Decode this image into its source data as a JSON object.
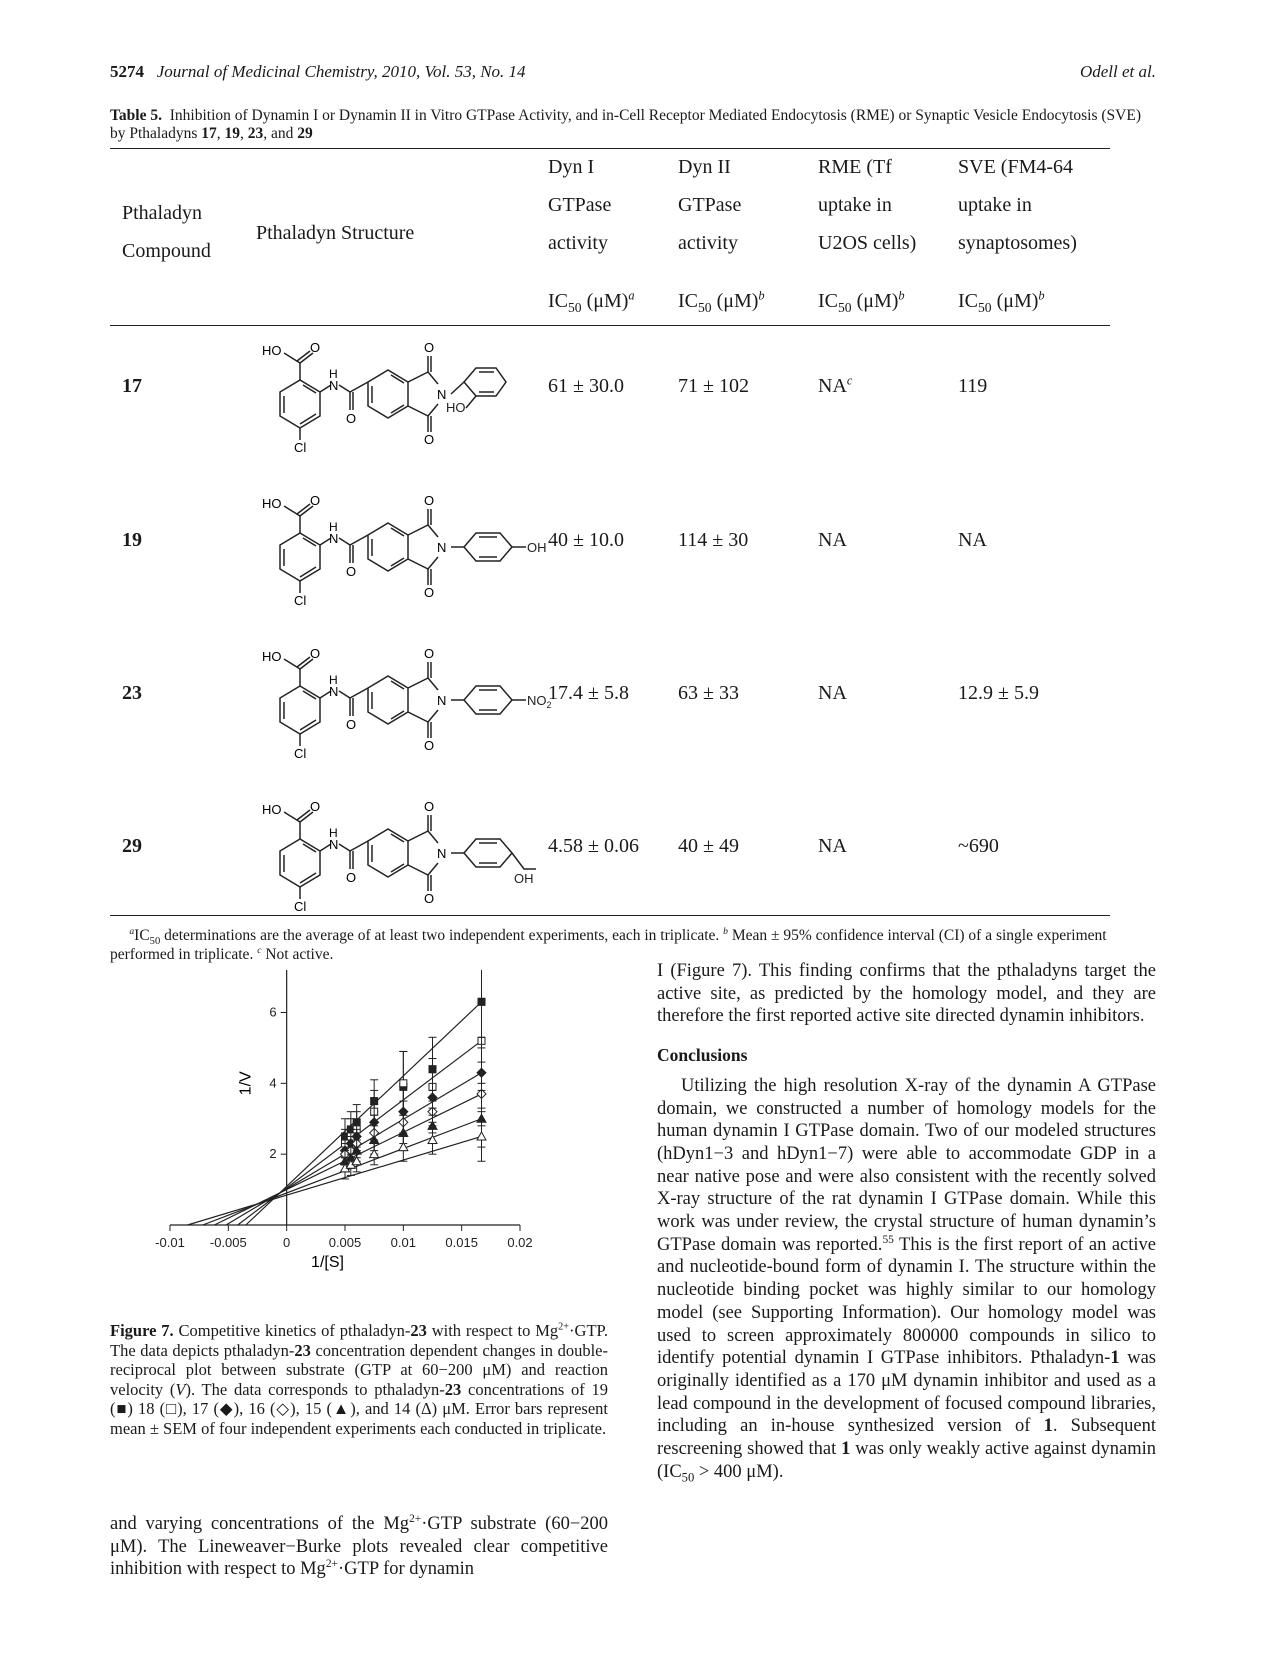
{
  "header": {
    "page_number": "5274",
    "journal": "Journal of Medicinal Chemistry, 2010, Vol. 53, No. 14",
    "authors": "Odell et al."
  },
  "table": {
    "label": "Table 5.",
    "caption_a": "Inhibition of Dynamin I or Dynamin II in Vitro GTPase Activity, and in-Cell Receptor Mediated Endocytosis (RME) or Synaptic Vesicle Endocytosis (SVE) by Pthaladyns ",
    "caption_nums": [
      "17",
      "19",
      "23",
      "29"
    ],
    "headers": {
      "compound": [
        "Pthaladyn",
        "Compound"
      ],
      "structure": "Pthaladyn Structure",
      "dyn1": [
        "Dyn I",
        "GTPase",
        "activity"
      ],
      "dyn2": [
        "Dyn II",
        "GTPase",
        "activity"
      ],
      "rme": [
        "RME (Tf",
        "uptake in",
        "U2OS cells)"
      ],
      "sve": [
        "SVE (FM4-64",
        "uptake in",
        "synaptosomes)"
      ],
      "ic50_prefix": "IC",
      "ic50_sub": "50",
      "ic50_suffix": " (μM)",
      "sup_a": "a",
      "sup_b": "b"
    },
    "rows": [
      {
        "compound": "17",
        "dyn1": "61 ± 30.0",
        "dyn2": "71 ± 102",
        "rme": "NA",
        "rme_sup": "c",
        "sve": "119"
      },
      {
        "compound": "19",
        "dyn1": "40 ± 10.0",
        "dyn2": "114 ± 30",
        "rme": "NA",
        "rme_sup": "",
        "sve": "NA"
      },
      {
        "compound": "23",
        "dyn1": "17.4 ± 5.8",
        "dyn2": "63 ± 33",
        "rme": "NA",
        "rme_sup": "",
        "sve": "12.9 ± 5.9"
      },
      {
        "compound": "29",
        "dyn1": "4.58 ± 0.06",
        "dyn2": "40 ± 49",
        "rme": "NA",
        "rme_sup": "",
        "sve": "~690"
      }
    ],
    "structure_labels": {
      "ho": "HO",
      "o": "O",
      "h": "H",
      "n": "N",
      "cl": "Cl",
      "oh": "OH",
      "no2": "NO",
      "no2_sub": "2"
    },
    "footnote_sup_a": "a",
    "footnote_a1": "IC",
    "footnote_a_sub": "50",
    "footnote_a2": " determinations are the average of at least two independent experiments, each in triplicate. ",
    "footnote_sup_b": "b",
    "footnote_b": " Mean ± 95% confidence interval (CI) of a single experiment performed in triplicate. ",
    "footnote_sup_c": "c",
    "footnote_c": " Not active."
  },
  "chart_data": {
    "type": "line",
    "title": "",
    "xlabel": "1/[S]",
    "ylabel": "1/V",
    "xlim": [
      -0.01,
      0.02
    ],
    "ylim": [
      0,
      7.2
    ],
    "x_ticks": [
      "-0.01",
      "-0.005",
      "0",
      "0.005",
      "0.01",
      "0.015",
      "0.02"
    ],
    "y_ticks": [
      "2",
      "4",
      "6"
    ],
    "x": [
      0.005,
      0.0055,
      0.006,
      0.0075,
      0.01,
      0.0125,
      0.0167
    ],
    "intercept_y": 0.9,
    "series": [
      {
        "marker": "filled-square",
        "values": [
          2.5,
          2.7,
          2.9,
          3.5,
          3.9,
          4.4,
          6.3
        ],
        "err": [
          0.5,
          0.5,
          0.5,
          0.6,
          1.0,
          0.9,
          1.3
        ],
        "x_intercept": -0.0035
      },
      {
        "marker": "open-square",
        "values": [
          2.3,
          2.5,
          2.7,
          3.2,
          4.0,
          3.9,
          5.2
        ],
        "err": [
          0.4,
          0.5,
          0.5,
          0.6,
          0.9,
          0.8,
          1.2
        ],
        "x_intercept": -0.0042
      },
      {
        "marker": "filled-diamond",
        "values": [
          2.1,
          2.3,
          2.5,
          2.9,
          3.2,
          3.6,
          4.3
        ],
        "err": [
          0.4,
          0.4,
          0.4,
          0.5,
          0.7,
          0.7,
          1.0
        ],
        "x_intercept": -0.0052
      },
      {
        "marker": "open-diamond",
        "values": [
          2.0,
          2.1,
          2.3,
          2.6,
          2.9,
          3.2,
          3.7
        ],
        "err": [
          0.3,
          0.4,
          0.4,
          0.5,
          0.6,
          0.6,
          0.9
        ],
        "x_intercept": -0.0062
      },
      {
        "marker": "filled-triangle",
        "values": [
          1.8,
          1.9,
          2.1,
          2.4,
          2.6,
          2.8,
          3.0
        ],
        "err": [
          0.3,
          0.3,
          0.3,
          0.4,
          0.5,
          0.5,
          0.8
        ],
        "x_intercept": -0.0072
      },
      {
        "marker": "open-triangle",
        "values": [
          1.6,
          1.7,
          1.8,
          2.0,
          2.2,
          2.4,
          2.5
        ],
        "err": [
          0.3,
          0.3,
          0.3,
          0.3,
          0.4,
          0.4,
          0.7
        ],
        "x_intercept": -0.0085
      }
    ]
  },
  "figure": {
    "label": "Figure 7.",
    "caption_1": " Competitive kinetics of pthaladyn-",
    "caption_23a": "23",
    "caption_2": " with respect to Mg",
    "caption_sup": "2+",
    "caption_3": "·GTP. The data depicts pthaladyn-",
    "caption_23b": "23",
    "caption_4": " concentration dependent changes in double-reciprocal plot between substrate (GTP at 60−200 μM) and reaction velocity (",
    "caption_v": "V",
    "caption_5": "). The data corresponds to pthaladyn-",
    "caption_23c": "23",
    "caption_6": " concentrations of 19 (■) 18 (□), 17 (◆), 16 (◇), 15 (▲), and 14 (Δ) μM. Error bars represent mean ± SEM of four independent experiments each conducted in triplicate."
  },
  "left_text": {
    "p1": "and varying concentrations of the Mg",
    "p1_sup": "2+",
    "p2": "·GTP substrate (60−200 μM). The Lineweaver−Burke plots revealed clear competitive inhibition with respect to Mg",
    "p2_sup": "2+",
    "p3": "·GTP for dynamin"
  },
  "right_text": {
    "para1": "I (Figure 7). This finding confirms that the pthaladyns target the active site, as predicted by the homology model, and they are therefore the first reported active site directed dynamin inhibitors.",
    "section": "Conclusions",
    "p_a": "Utilizing the high resolution X-ray of the dynamin A GTPase domain, we constructed a number of homology models for the human dynamin I GTPase domain. Two of our modeled structures (hDyn1−3 and hDyn1−7) were able to accommodate GDP in a near native pose and were also consistent with the recently solved X-ray structure of the rat dynamin I GTPase domain. While this work was under review, the crystal structure of human dynamin’s GTPase domain was reported.",
    "p_ref": "55",
    "p_b": " This is the first report of an active and nucleotide-bound form of dynamin I. The structure within the nucleotide binding pocket was highly similar to our homology model (see Supporting Information). Our homology model was used to screen approximately 800000 compounds in silico to identify potential dynamin I GTPase inhibitors. Pthaladyn-",
    "p_b_num": "1",
    "p_c": " was originally identified as a 170 μM dynamin inhibitor and used as a lead compound in the development of focused compound libraries, including an in-house synthesized version of ",
    "p_c_num": "1",
    "p_d": ". Subsequent rescreening showed that ",
    "p_d_num": "1",
    "p_e": " was only weakly active against dynamin (IC",
    "p_e_sub": "50",
    "p_f": " > 400 μM)."
  }
}
